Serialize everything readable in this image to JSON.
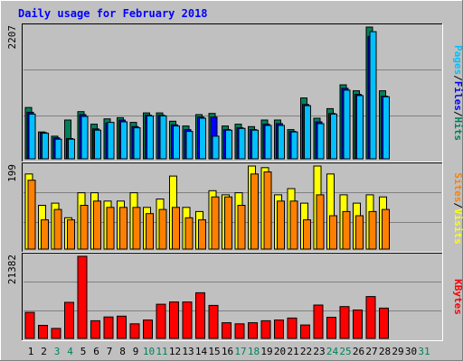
{
  "colors": {
    "background": "#C0C0C0",
    "title": "#0000FF",
    "hits": "#00805C",
    "files": "#0000FF",
    "pages": "#00C0FF",
    "visits": "#FFFF00",
    "sites": "#FF8000",
    "kbytes": "#FF0000",
    "weekend_day": "#00805C",
    "weekday": "#000000"
  },
  "chart_data": [
    {
      "type": "bar",
      "title": "Daily usage for February 2018",
      "panel": "hits-files-pages",
      "ymax_label": "2207",
      "ylim": [
        0,
        2207
      ],
      "legend": [
        "Pages",
        "/",
        "Files",
        "/",
        "Hits"
      ],
      "categories": [
        "1",
        "2",
        "3",
        "4",
        "5",
        "6",
        "7",
        "8",
        "9",
        "10",
        "11",
        "12",
        "13",
        "14",
        "15",
        "16",
        "17",
        "18",
        "19",
        "20",
        "21",
        "22",
        "23",
        "24",
        "25",
        "26",
        "27",
        "28",
        "29",
        "30",
        "31"
      ],
      "series": [
        {
          "name": "Hits",
          "values": [
            860,
            450,
            380,
            650,
            790,
            580,
            670,
            690,
            610,
            770,
            770,
            630,
            550,
            740,
            760,
            550,
            580,
            540,
            650,
            650,
            490,
            1020,
            680,
            840,
            1240,
            1140,
            2207,
            1140,
            0,
            0,
            0
          ]
        },
        {
          "name": "Files",
          "values": [
            780,
            440,
            350,
            340,
            740,
            500,
            600,
            650,
            540,
            730,
            730,
            570,
            490,
            700,
            700,
            490,
            520,
            490,
            580,
            590,
            460,
            910,
            620,
            760,
            1180,
            1080,
            2050,
            1050,
            0,
            0,
            0
          ]
        },
        {
          "name": "Pages",
          "values": [
            750,
            430,
            330,
            330,
            710,
            480,
            610,
            620,
            520,
            720,
            720,
            550,
            460,
            680,
            380,
            480,
            510,
            480,
            560,
            560,
            450,
            890,
            590,
            750,
            1150,
            1060,
            2130,
            1040,
            0,
            0,
            0
          ]
        }
      ]
    },
    {
      "type": "bar",
      "panel": "visits-sites",
      "ymax_label": "199",
      "ylim": [
        0,
        199
      ],
      "legend": [
        "Sites",
        "/",
        "Visits"
      ],
      "categories": [
        "1",
        "2",
        "3",
        "4",
        "5",
        "6",
        "7",
        "8",
        "9",
        "10",
        "11",
        "12",
        "13",
        "14",
        "15",
        "16",
        "17",
        "18",
        "19",
        "20",
        "21",
        "22",
        "23",
        "24",
        "25",
        "26",
        "27",
        "28",
        "29",
        "30",
        "31"
      ],
      "series": [
        {
          "name": "Visits",
          "values": [
            180,
            105,
            110,
            75,
            135,
            135,
            115,
            115,
            135,
            100,
            120,
            175,
            100,
            90,
            140,
            130,
            135,
            199,
            195,
            130,
            145,
            110,
            199,
            180,
            130,
            110,
            130,
            125,
            0,
            0,
            0
          ]
        },
        {
          "name": "Sites",
          "values": [
            165,
            70,
            95,
            70,
            105,
            115,
            100,
            100,
            100,
            85,
            95,
            100,
            75,
            70,
            125,
            125,
            105,
            180,
            185,
            115,
            115,
            70,
            130,
            80,
            90,
            80,
            90,
            95,
            0,
            0,
            0
          ]
        }
      ]
    },
    {
      "type": "bar",
      "panel": "kbytes",
      "ymax_label": "21382",
      "ylim": [
        0,
        21382
      ],
      "legend": [
        "KBytes"
      ],
      "categories": [
        "1",
        "2",
        "3",
        "4",
        "5",
        "6",
        "7",
        "8",
        "9",
        "10",
        "11",
        "12",
        "13",
        "14",
        "15",
        "16",
        "17",
        "18",
        "19",
        "20",
        "21",
        "22",
        "23",
        "24",
        "25",
        "26",
        "27",
        "28",
        "29",
        "30",
        "31"
      ],
      "series": [
        {
          "name": "KBytes",
          "values": [
            6800,
            3400,
            2600,
            9400,
            21382,
            4600,
            5600,
            5800,
            3800,
            4800,
            8900,
            9500,
            9500,
            11900,
            8600,
            4100,
            3800,
            4100,
            4600,
            4800,
            5300,
            3500,
            8700,
            5500,
            8300,
            7400,
            10900,
            7900,
            0,
            0,
            0
          ]
        }
      ]
    }
  ]
}
